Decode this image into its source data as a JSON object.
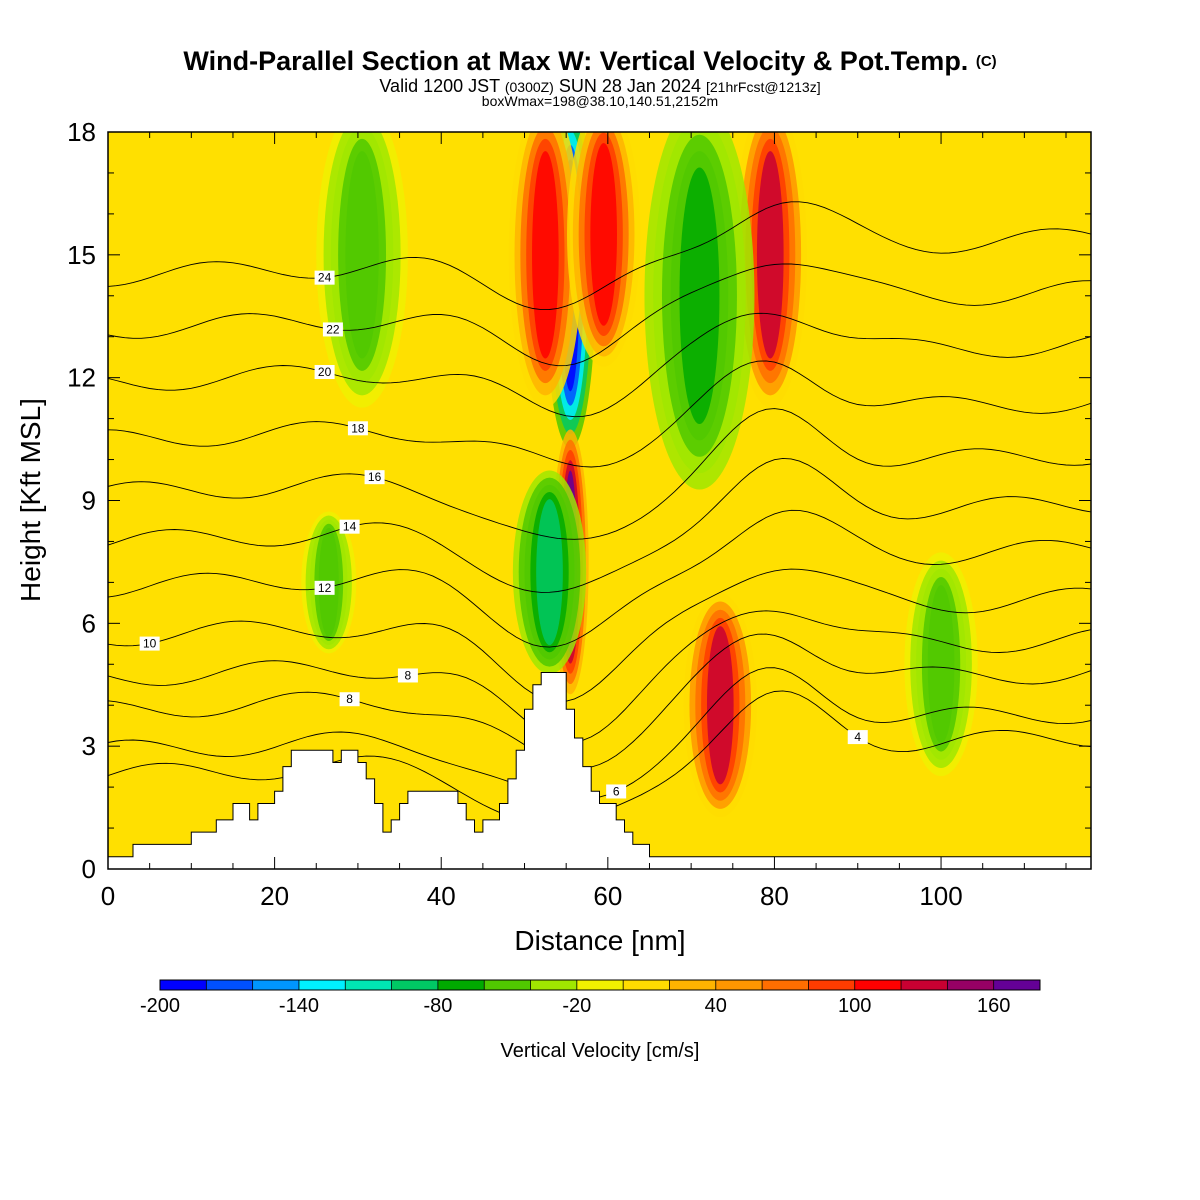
{
  "chart_data": {
    "type": "heatmap",
    "title": "Wind-Parallel Section at Max W: Vertical Velocity & Pot.Temp.",
    "title_mark": "(C)",
    "subtitle_parts": [
      "Valid 1200 JST",
      "(0300Z)",
      "SUN 28 Jan 2024",
      "[21hrFcst@1213z]"
    ],
    "subtitle2": "boxWmax=198@38.10,140.51,2152m",
    "xlabel": "Distance [nm]",
    "ylabel": "Height [Kft MSL]",
    "xlim": [
      0,
      118
    ],
    "ylim": [
      0,
      18
    ],
    "x_ticks": [
      0,
      20,
      40,
      60,
      80,
      100
    ],
    "y_ticks": [
      0,
      3,
      6,
      9,
      12,
      15,
      18
    ],
    "colorbar": {
      "title": "Vertical Velocity [cm/s]",
      "min": -200,
      "max": 180,
      "step": 20,
      "tick_labels": [
        -200,
        -140,
        -80,
        -20,
        40,
        100,
        160
      ],
      "colors": [
        "#0000ff",
        "#0050ff",
        "#0096ff",
        "#00f0ff",
        "#00e6b4",
        "#00c864",
        "#00aa00",
        "#50c800",
        "#a0e600",
        "#f0f000",
        "#ffdc00",
        "#ffb400",
        "#ff9600",
        "#ff6e00",
        "#ff3c00",
        "#ff0000",
        "#c80032",
        "#960064",
        "#640096"
      ]
    },
    "velocity_features": [
      {
        "x": 55.5,
        "y_range": [
          11,
          18
        ],
        "value": -190,
        "width_nm": 1.4
      },
      {
        "x": 52.5,
        "y_range": [
          12,
          18
        ],
        "value": 100,
        "width_nm": 2.0
      },
      {
        "x": 59.5,
        "y_range": [
          13,
          18
        ],
        "value": 100,
        "width_nm": 2.0
      },
      {
        "x": 55.5,
        "y_range": [
          5,
          10
        ],
        "value": 160,
        "width_nm": 1.0
      },
      {
        "x": 53.0,
        "y_range": [
          5.5,
          9
        ],
        "value": -80,
        "width_nm": 2.0
      },
      {
        "x": 73.5,
        "y_range": [
          2,
          6
        ],
        "value": 110,
        "width_nm": 2.0
      },
      {
        "x": 79.5,
        "y_range": [
          12,
          18
        ],
        "value": 110,
        "width_nm": 2.0
      },
      {
        "x": 71.0,
        "y_range": [
          10,
          18
        ],
        "value": -60,
        "width_nm": 3.0
      },
      {
        "x": 30.5,
        "y_range": [
          12,
          18
        ],
        "value": -40,
        "width_nm": 2.5
      },
      {
        "x": 26.5,
        "y_range": [
          6,
          8
        ],
        "value": -40,
        "width_nm": 1.5
      },
      {
        "x": 100.0,
        "y_range": [
          3,
          7
        ],
        "value": -40,
        "width_nm": 2.0
      }
    ],
    "terrain": [
      [
        0,
        0.3
      ],
      [
        3,
        0.3
      ],
      [
        3,
        0.6
      ],
      [
        10,
        0.6
      ],
      [
        10,
        0.9
      ],
      [
        13,
        0.9
      ],
      [
        13,
        1.2
      ],
      [
        15,
        1.2
      ],
      [
        15,
        1.6
      ],
      [
        17,
        1.6
      ],
      [
        17,
        1.2
      ],
      [
        18,
        1.2
      ],
      [
        18,
        1.6
      ],
      [
        20,
        1.6
      ],
      [
        20,
        1.9
      ],
      [
        21,
        1.9
      ],
      [
        21,
        2.5
      ],
      [
        22,
        2.5
      ],
      [
        22,
        2.9
      ],
      [
        27,
        2.9
      ],
      [
        27,
        2.6
      ],
      [
        28,
        2.6
      ],
      [
        28,
        2.9
      ],
      [
        30,
        2.9
      ],
      [
        30,
        2.6
      ],
      [
        31,
        2.6
      ],
      [
        31,
        2.2
      ],
      [
        32,
        2.2
      ],
      [
        32,
        1.6
      ],
      [
        33,
        1.6
      ],
      [
        33,
        0.9
      ],
      [
        34,
        0.9
      ],
      [
        34,
        1.2
      ],
      [
        35,
        1.2
      ],
      [
        35,
        1.6
      ],
      [
        36,
        1.6
      ],
      [
        36,
        1.9
      ],
      [
        42,
        1.9
      ],
      [
        42,
        1.6
      ],
      [
        43,
        1.6
      ],
      [
        43,
        1.2
      ],
      [
        44,
        1.2
      ],
      [
        44,
        0.9
      ],
      [
        45,
        0.9
      ],
      [
        45,
        1.2
      ],
      [
        47,
        1.2
      ],
      [
        47,
        1.6
      ],
      [
        48,
        1.6
      ],
      [
        48,
        2.2
      ],
      [
        49,
        2.2
      ],
      [
        49,
        2.9
      ],
      [
        50,
        2.9
      ],
      [
        50,
        3.9
      ],
      [
        51,
        3.9
      ],
      [
        51,
        4.5
      ],
      [
        52,
        4.5
      ],
      [
        52,
        4.8
      ],
      [
        55,
        4.8
      ],
      [
        55,
        3.9
      ],
      [
        56,
        3.9
      ],
      [
        56,
        3.2
      ],
      [
        57,
        3.2
      ],
      [
        57,
        2.5
      ],
      [
        58,
        2.5
      ],
      [
        58,
        1.9
      ],
      [
        59,
        1.9
      ],
      [
        59,
        1.6
      ],
      [
        61,
        1.6
      ],
      [
        61,
        1.2
      ],
      [
        62,
        1.2
      ],
      [
        62,
        0.9
      ],
      [
        63,
        0.9
      ],
      [
        63,
        0.6
      ],
      [
        65,
        0.6
      ],
      [
        65,
        0.3
      ],
      [
        118,
        0.3
      ]
    ],
    "isentropes": [
      {
        "theta": 4,
        "y0": 2.6,
        "label": "4",
        "label_x": 90
      },
      {
        "theta": 6,
        "y0": 3.2,
        "label": "6",
        "label_x": 61
      },
      {
        "theta": 8,
        "y0": 4.2,
        "label": "8",
        "label_x": 29
      },
      {
        "theta": 8,
        "y0": 5.0,
        "label": "8",
        "label_x": 36
      },
      {
        "theta": 10,
        "y0": 6.0,
        "label": "10",
        "label_x": 5
      },
      {
        "theta": 12,
        "y0": 7.2,
        "label": "12",
        "label_x": 26
      },
      {
        "theta": 14,
        "y0": 8.3,
        "label": "14",
        "label_x": 29
      },
      {
        "theta": 16,
        "y0": 9.5,
        "label": "16",
        "label_x": 32
      },
      {
        "theta": 18,
        "y0": 10.8,
        "label": "18",
        "label_x": 30
      },
      {
        "theta": 20,
        "y0": 12.2,
        "label": "20",
        "label_x": 26
      },
      {
        "theta": 22,
        "y0": 13.5,
        "label": "22",
        "label_x": 27
      },
      {
        "theta": 24,
        "y0": 14.8,
        "label": "24",
        "label_x": 26
      }
    ]
  }
}
